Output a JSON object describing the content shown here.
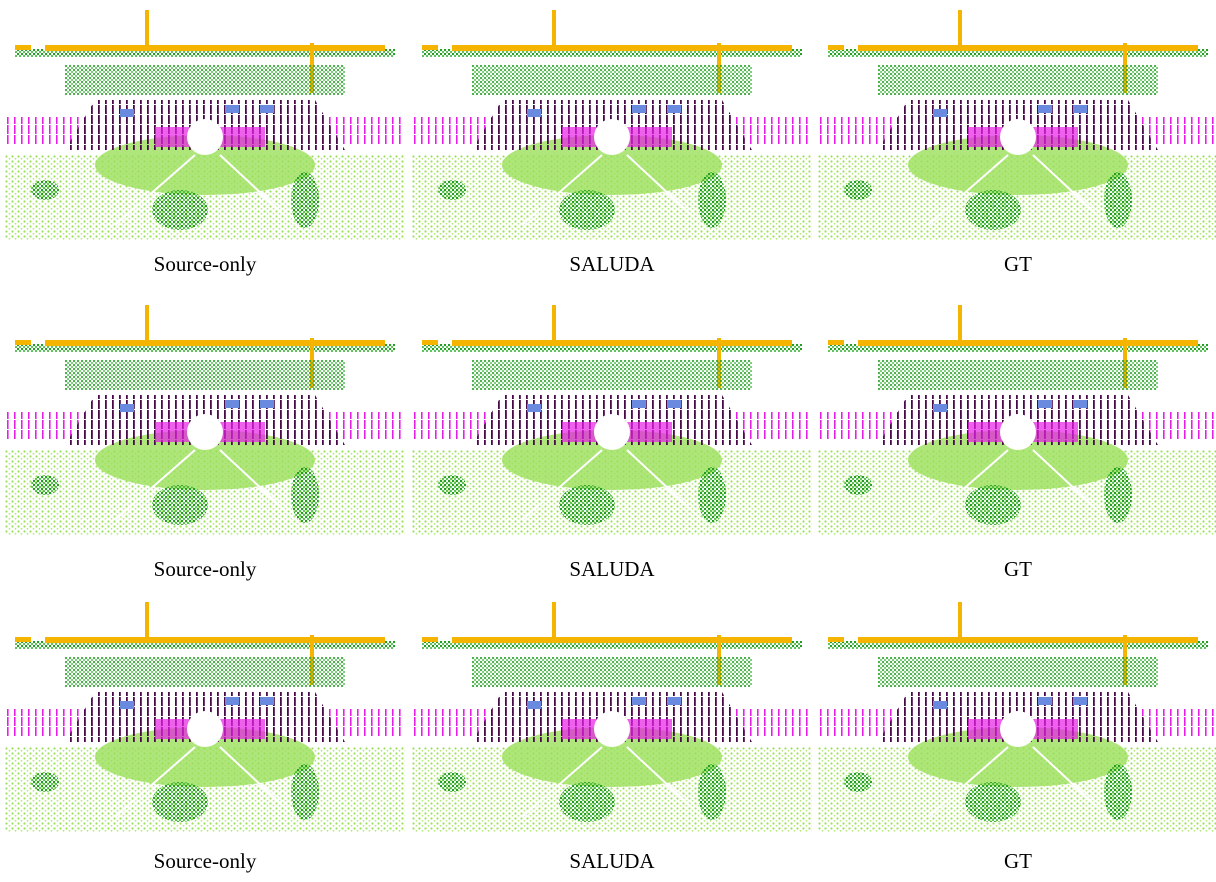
{
  "rows": [
    {
      "captions": [
        "Source-only",
        "SALUDA",
        "GT"
      ]
    },
    {
      "captions": [
        "Source-only",
        "SALUDA",
        "GT"
      ]
    },
    {
      "captions": [
        "Source-only",
        "SALUDA",
        "GT"
      ]
    }
  ]
}
